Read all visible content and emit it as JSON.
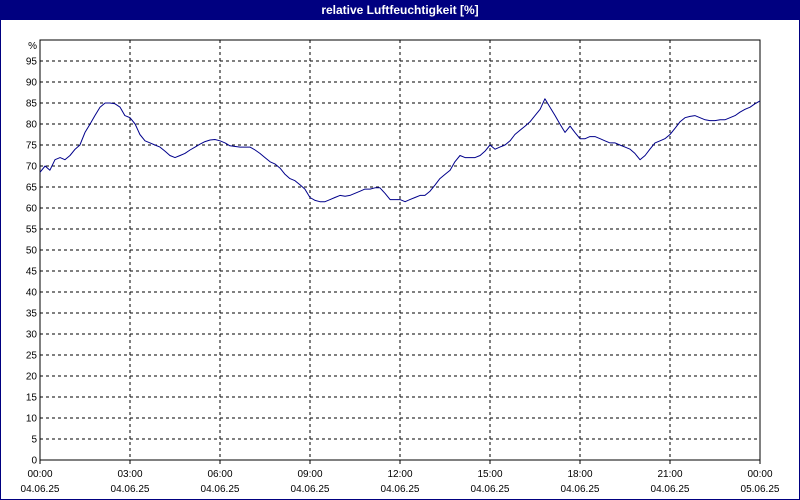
{
  "window": {
    "title": "relative Luftfeuchtigkeit [%]"
  },
  "chart_data": {
    "type": "line",
    "title": "relative Luftfeuchtigkeit [%]",
    "ylabel": "%",
    "xlabel": "",
    "ylim": [
      0,
      100
    ],
    "y_ticks": [
      0,
      5,
      10,
      15,
      20,
      25,
      30,
      35,
      40,
      45,
      50,
      55,
      60,
      65,
      70,
      75,
      80,
      85,
      90,
      95
    ],
    "xlim_hours": [
      0,
      24
    ],
    "x_ticks": [
      {
        "hour": 0,
        "time": "00:00",
        "date": "04.06.25"
      },
      {
        "hour": 3,
        "time": "03:00",
        "date": "04.06.25"
      },
      {
        "hour": 6,
        "time": "06:00",
        "date": "04.06.25"
      },
      {
        "hour": 9,
        "time": "09:00",
        "date": "04.06.25"
      },
      {
        "hour": 12,
        "time": "12:00",
        "date": "04.06.25"
      },
      {
        "hour": 15,
        "time": "15:00",
        "date": "04.06.25"
      },
      {
        "hour": 18,
        "time": "18:00",
        "date": "04.06.25"
      },
      {
        "hour": 21,
        "time": "21:00",
        "date": "04.06.25"
      },
      {
        "hour": 24,
        "time": "00:00",
        "date": "05.06.25"
      }
    ],
    "grid": true,
    "line_color": "#00008b",
    "series": [
      {
        "points": [
          [
            0.0,
            68.5
          ],
          [
            0.17,
            70.0
          ],
          [
            0.33,
            69.0
          ],
          [
            0.5,
            71.5
          ],
          [
            0.67,
            72.0
          ],
          [
            0.83,
            71.5
          ],
          [
            1.0,
            72.5
          ],
          [
            1.17,
            74.0
          ],
          [
            1.33,
            75.0
          ],
          [
            1.5,
            78.0
          ],
          [
            1.67,
            80.0
          ],
          [
            1.83,
            82.0
          ],
          [
            2.0,
            84.0
          ],
          [
            2.17,
            85.0
          ],
          [
            2.33,
            85.0
          ],
          [
            2.5,
            84.8
          ],
          [
            2.67,
            84.0
          ],
          [
            2.83,
            82.0
          ],
          [
            3.0,
            81.5
          ],
          [
            3.17,
            80.0
          ],
          [
            3.33,
            77.5
          ],
          [
            3.5,
            76.0
          ],
          [
            3.67,
            75.5
          ],
          [
            3.83,
            75.0
          ],
          [
            4.0,
            74.5
          ],
          [
            4.17,
            73.5
          ],
          [
            4.33,
            72.5
          ],
          [
            4.5,
            72.0
          ],
          [
            4.67,
            72.5
          ],
          [
            4.83,
            73.0
          ],
          [
            5.0,
            73.8
          ],
          [
            5.17,
            74.5
          ],
          [
            5.33,
            75.2
          ],
          [
            5.5,
            75.8
          ],
          [
            5.67,
            76.2
          ],
          [
            5.83,
            76.3
          ],
          [
            6.0,
            76.0
          ],
          [
            6.17,
            75.5
          ],
          [
            6.33,
            74.8
          ],
          [
            6.67,
            74.5
          ],
          [
            7.0,
            74.5
          ],
          [
            7.17,
            73.8
          ],
          [
            7.33,
            73.0
          ],
          [
            7.5,
            72.0
          ],
          [
            7.67,
            71.0
          ],
          [
            7.83,
            70.5
          ],
          [
            8.0,
            69.5
          ],
          [
            8.17,
            68.0
          ],
          [
            8.33,
            67.0
          ],
          [
            8.5,
            66.5
          ],
          [
            8.67,
            65.5
          ],
          [
            8.83,
            64.5
          ],
          [
            9.0,
            62.5
          ],
          [
            9.17,
            61.8
          ],
          [
            9.33,
            61.5
          ],
          [
            9.5,
            61.5
          ],
          [
            9.67,
            62.0
          ],
          [
            9.83,
            62.5
          ],
          [
            10.0,
            63.0
          ],
          [
            10.17,
            62.8
          ],
          [
            10.33,
            63.0
          ],
          [
            10.5,
            63.5
          ],
          [
            10.67,
            64.0
          ],
          [
            10.83,
            64.5
          ],
          [
            11.0,
            64.5
          ],
          [
            11.17,
            64.8
          ],
          [
            11.33,
            64.8
          ],
          [
            11.5,
            63.5
          ],
          [
            11.67,
            62.0
          ],
          [
            11.83,
            62.0
          ],
          [
            12.0,
            62.0
          ],
          [
            12.17,
            61.5
          ],
          [
            12.33,
            62.0
          ],
          [
            12.5,
            62.5
          ],
          [
            12.67,
            63.0
          ],
          [
            12.83,
            63.0
          ],
          [
            13.0,
            64.0
          ],
          [
            13.17,
            65.5
          ],
          [
            13.33,
            67.0
          ],
          [
            13.5,
            68.0
          ],
          [
            13.67,
            69.0
          ],
          [
            13.83,
            71.0
          ],
          [
            14.0,
            72.5
          ],
          [
            14.17,
            72.0
          ],
          [
            14.33,
            72.0
          ],
          [
            14.5,
            72.0
          ],
          [
            14.67,
            72.5
          ],
          [
            14.83,
            73.5
          ],
          [
            15.0,
            75.0
          ],
          [
            15.17,
            74.0
          ],
          [
            15.33,
            74.5
          ],
          [
            15.5,
            75.0
          ],
          [
            15.67,
            76.0
          ],
          [
            15.83,
            77.5
          ],
          [
            16.0,
            78.5
          ],
          [
            16.17,
            79.5
          ],
          [
            16.33,
            80.5
          ],
          [
            16.5,
            82.0
          ],
          [
            16.67,
            83.5
          ],
          [
            16.83,
            86.0
          ],
          [
            17.0,
            84.0
          ],
          [
            17.17,
            82.0
          ],
          [
            17.33,
            80.0
          ],
          [
            17.5,
            78.0
          ],
          [
            17.67,
            79.5
          ],
          [
            17.83,
            78.0
          ],
          [
            18.0,
            76.5
          ],
          [
            18.17,
            76.5
          ],
          [
            18.33,
            77.0
          ],
          [
            18.5,
            77.0
          ],
          [
            18.67,
            76.5
          ],
          [
            18.83,
            76.0
          ],
          [
            19.0,
            75.5
          ],
          [
            19.17,
            75.5
          ],
          [
            19.33,
            75.0
          ],
          [
            19.5,
            74.5
          ],
          [
            19.67,
            74.0
          ],
          [
            19.83,
            73.0
          ],
          [
            20.0,
            71.5
          ],
          [
            20.17,
            72.5
          ],
          [
            20.33,
            74.0
          ],
          [
            20.5,
            75.5
          ],
          [
            20.67,
            76.0
          ],
          [
            20.83,
            76.5
          ],
          [
            21.0,
            77.5
          ],
          [
            21.17,
            79.0
          ],
          [
            21.33,
            80.5
          ],
          [
            21.5,
            81.5
          ],
          [
            21.67,
            81.8
          ],
          [
            21.83,
            82.0
          ],
          [
            22.0,
            81.5
          ],
          [
            22.17,
            81.0
          ],
          [
            22.33,
            80.8
          ],
          [
            22.5,
            80.8
          ],
          [
            22.67,
            81.0
          ],
          [
            22.83,
            81.0
          ],
          [
            23.0,
            81.5
          ],
          [
            23.17,
            82.0
          ],
          [
            23.33,
            82.8
          ],
          [
            23.5,
            83.5
          ],
          [
            23.67,
            84.0
          ],
          [
            23.83,
            84.8
          ],
          [
            24.0,
            85.5
          ],
          [
            24.17,
            85.0
          ],
          [
            24.33,
            85.8
          ],
          [
            24.5,
            85.0
          ]
        ]
      }
    ]
  }
}
